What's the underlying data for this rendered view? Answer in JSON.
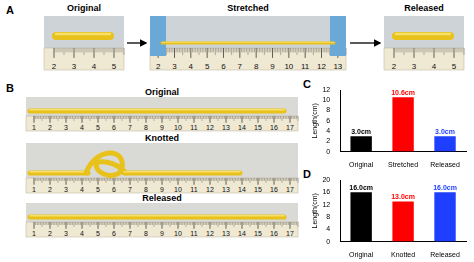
{
  "panel_labels": [
    "A",
    "B",
    "C",
    "D"
  ],
  "panel_a": {
    "photos": [
      {
        "title": "Original",
        "ruler": [
          2,
          3,
          4,
          5
        ]
      },
      {
        "title": "Stretched",
        "ruler": [
          2,
          3,
          4,
          5,
          6,
          7,
          8,
          9,
          10,
          11,
          12,
          13
        ]
      },
      {
        "title": "Released",
        "ruler": [
          2,
          3,
          4,
          5
        ]
      }
    ]
  },
  "panel_b": {
    "photos": [
      {
        "title": "Original",
        "ruler": [
          1,
          2,
          3,
          4,
          5,
          6,
          7,
          8,
          9,
          10,
          11,
          12,
          13,
          14,
          15,
          16,
          17
        ]
      },
      {
        "title": "Knotted",
        "ruler": [
          1,
          2,
          3,
          4,
          5,
          6,
          7,
          8,
          9,
          10,
          11,
          12,
          13,
          14,
          15,
          16,
          17
        ]
      },
      {
        "title": "Released",
        "ruler": [
          1,
          2,
          3,
          4,
          5,
          6,
          7,
          8,
          9,
          10,
          11,
          12,
          13,
          14,
          15,
          16,
          17
        ]
      }
    ]
  },
  "chart_data": [
    {
      "type": "bar",
      "categories": [
        "Original",
        "Stretched",
        "Released"
      ],
      "values": [
        3.0,
        10.6,
        3.0
      ],
      "value_labels": [
        "3.0cm",
        "10.6cm",
        "3.0cm"
      ],
      "colors": [
        "#000000",
        "#ff0000",
        "#1f3fff"
      ],
      "y_label": "Length(cm)",
      "ylim": [
        0,
        12
      ],
      "yticks": [
        0,
        2,
        4,
        6,
        8,
        10,
        12
      ],
      "data_labels": true,
      "grid": false
    },
    {
      "type": "bar",
      "categories": [
        "Original",
        "Knotted",
        "Released"
      ],
      "values": [
        16.0,
        13.0,
        16.0
      ],
      "value_labels": [
        "16.0cm",
        "13.0cm",
        "16.0cm"
      ],
      "colors": [
        "#000000",
        "#ff0000",
        "#1f3fff"
      ],
      "y_label": "Length(cm)",
      "ylim": [
        0,
        20
      ],
      "yticks": [
        0,
        4,
        8,
        12,
        16,
        20
      ],
      "data_labels": true,
      "grid": false
    }
  ]
}
